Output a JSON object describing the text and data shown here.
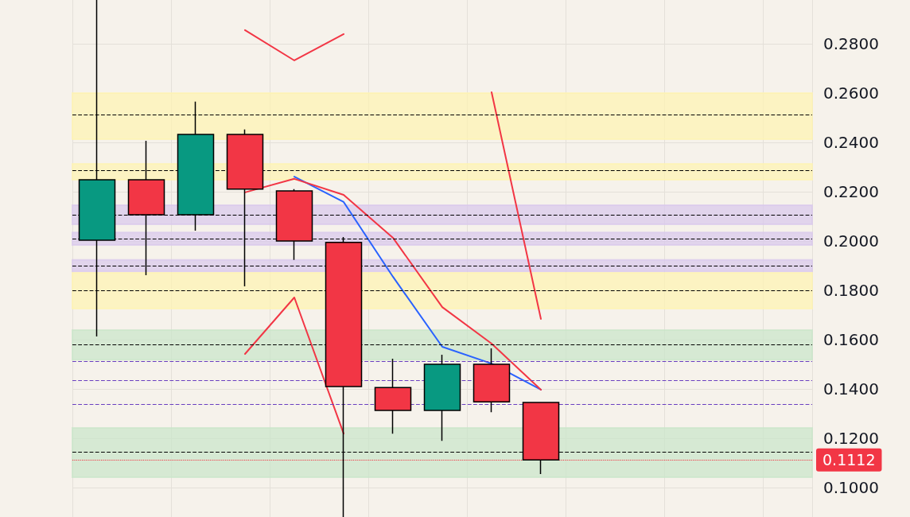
{
  "chart_data": {
    "type": "candlestick",
    "categories": [
      null,
      null,
      null,
      null,
      null,
      null,
      null,
      null,
      null,
      null,
      null,
      null,
      null,
      null,
      null
    ],
    "ylim": [
      0.0881,
      0.2977
    ],
    "yticks": [
      {
        "value": 0.1,
        "label": "0.1000"
      },
      {
        "value": 0.12,
        "label": "0.1200"
      },
      {
        "value": 0.14,
        "label": "0.1400"
      },
      {
        "value": 0.16,
        "label": "0.1600"
      },
      {
        "value": 0.18,
        "label": "0.1800"
      },
      {
        "value": 0.2,
        "label": "0.2000"
      },
      {
        "value": 0.22,
        "label": "0.2200"
      },
      {
        "value": 0.24,
        "label": "0.2400"
      },
      {
        "value": 0.26,
        "label": "0.2600"
      },
      {
        "value": 0.28,
        "label": "0.2800"
      }
    ],
    "grid": true,
    "tick_labels": "y",
    "series": [
      {
        "type": "candlestick",
        "colors": [
          "#089981",
          "#f23645",
          "#089981",
          "#f23645",
          "#f23645",
          "#f23645",
          "#f23645",
          "#089981",
          "#f23645",
          "#f23645",
          null,
          null,
          null,
          null,
          null
        ],
        "ohlc": [
          [
            0.2003,
            0.2977,
            0.1613,
            0.2248
          ],
          [
            0.2248,
            0.2406,
            0.1861,
            0.2106
          ],
          [
            0.2106,
            0.2565,
            0.2042,
            0.2432
          ],
          [
            0.2432,
            0.2452,
            0.1816,
            0.221
          ],
          [
            0.2203,
            0.221,
            0.1923,
            0.2
          ],
          [
            0.1994,
            0.2016,
            0.0881,
            0.141
          ],
          [
            0.1406,
            0.1523,
            0.1219,
            0.1313
          ],
          [
            0.1313,
            0.1539,
            0.119,
            0.15
          ],
          [
            0.15,
            0.1565,
            0.1306,
            0.1348
          ],
          [
            0.1345,
            0.1348,
            0.1055,
            0.1112
          ],
          null,
          null,
          null,
          null,
          null
        ]
      },
      {
        "type": "line",
        "color": "#2962ff",
        "values": [
          null,
          null,
          null,
          null,
          0.2261,
          0.2158,
          0.1855,
          0.1571,
          0.1503,
          0.1397,
          null,
          null,
          null,
          null,
          null
        ]
      },
      {
        "type": "line",
        "color": "#f23645",
        "values": [
          null,
          null,
          null,
          0.2197,
          0.2252,
          0.2187,
          0.2013,
          0.1732,
          0.1584,
          0.1397,
          null,
          null,
          null,
          null,
          null
        ]
      },
      {
        "type": "line",
        "color": "#f23645",
        "values": [
          null,
          null,
          null,
          0.2855,
          0.2732,
          0.2839,
          null,
          null,
          0.2603,
          0.1684,
          null,
          null,
          null,
          null,
          null
        ]
      },
      {
        "type": "line",
        "color": "#f23645",
        "values": [
          null,
          null,
          null,
          0.1542,
          0.1771,
          0.1219,
          null,
          null,
          null,
          null,
          null,
          null,
          null,
          null,
          null
        ]
      }
    ],
    "bands": [
      {
        "axis": "y",
        "from": 0.2413,
        "to": 0.26,
        "color": "#fff3b0"
      },
      {
        "axis": "y",
        "from": 0.2248,
        "to": 0.2313,
        "color": "#fff3b0"
      },
      {
        "axis": "y",
        "from": 0.2068,
        "to": 0.2145,
        "color": "#d8c8ec"
      },
      {
        "axis": "y",
        "from": 0.1984,
        "to": 0.2035,
        "color": "#d8c8ec"
      },
      {
        "axis": "y",
        "from": 0.1877,
        "to": 0.1923,
        "color": "#d8c8ec"
      },
      {
        "axis": "y",
        "from": 0.1726,
        "to": 0.1871,
        "color": "#fff3b0"
      },
      {
        "axis": "y",
        "from": 0.1519,
        "to": 0.1639,
        "color": "#c9e6c9"
      },
      {
        "axis": "y",
        "from": 0.1042,
        "to": 0.1242,
        "color": "#c9e6c9"
      }
    ],
    "ref_lines": [
      {
        "axis": "y",
        "value": 0.2513,
        "label": null,
        "color": "#000000",
        "line_style": "dashed"
      },
      {
        "axis": "y",
        "value": 0.2287,
        "label": null,
        "color": "#000000",
        "line_style": "dashed"
      },
      {
        "axis": "y",
        "value": 0.2106,
        "label": null,
        "color": "#000000",
        "line_style": "dashed"
      },
      {
        "axis": "y",
        "value": 0.201,
        "label": null,
        "color": "#000000",
        "line_style": "dashed"
      },
      {
        "axis": "y",
        "value": 0.19,
        "label": null,
        "color": "#000000",
        "line_style": "dashed"
      },
      {
        "axis": "y",
        "value": 0.18,
        "label": null,
        "color": "#000000",
        "line_style": "dashed"
      },
      {
        "axis": "y",
        "value": 0.1581,
        "label": null,
        "color": "#000000",
        "line_style": "dashed"
      },
      {
        "axis": "y",
        "value": 0.1513,
        "label": null,
        "color": "#6a3fc0",
        "line_style": "dashed"
      },
      {
        "axis": "y",
        "value": 0.1435,
        "label": null,
        "color": "#6a3fc0",
        "line_style": "dashed"
      },
      {
        "axis": "y",
        "value": 0.1339,
        "label": null,
        "color": "#6a3fc0",
        "line_style": "dashed"
      },
      {
        "axis": "y",
        "value": 0.1145,
        "label": null,
        "color": "#000000",
        "line_style": "dashed"
      },
      {
        "axis": "y",
        "value": 0.1112,
        "label": "0.1112",
        "color": "#f23645",
        "line_style": "dotted"
      }
    ]
  }
}
